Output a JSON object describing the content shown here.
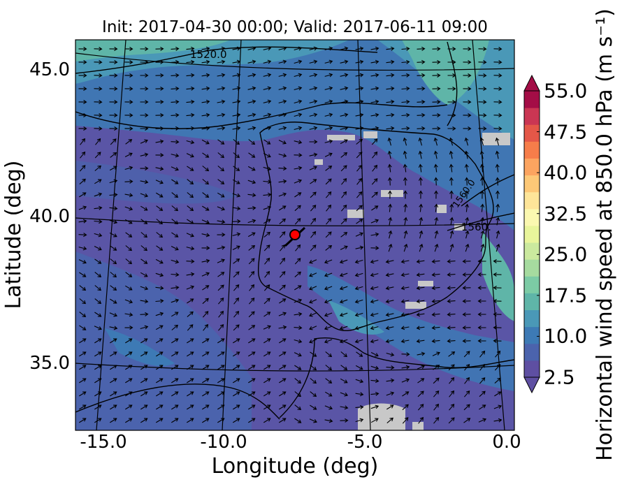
{
  "title": "Init: 2017-04-30 00:00; Valid: 2017-06-11 09:00",
  "xlabel": "Longitude (deg)",
  "ylabel": "Latitude (deg)",
  "colorbar": {
    "label": "Horizontal wind speed at 850.0 hPa (m s⁻¹)",
    "ticks": [
      "2.5",
      "10.0",
      "17.5",
      "25.0",
      "32.5",
      "40.0",
      "47.5",
      "55.0"
    ],
    "colors": [
      "#5e4fa2",
      "#4b63ad",
      "#3d7ab5",
      "#4a98b7",
      "#5fb5a8",
      "#7ccba5",
      "#a6db9f",
      "#cbe99e",
      "#e9f59b",
      "#fbf8b0",
      "#fee599",
      "#fdc877",
      "#fca460",
      "#f67d4a",
      "#e45748",
      "#ca3653",
      "#a40d46"
    ],
    "min": 2.5,
    "max": 55.0,
    "step": 2.5
  },
  "axes": {
    "x_ticks": [
      "-15.0",
      "-10.0",
      "-5.0",
      "0.0"
    ],
    "y_ticks": [
      "45.0",
      "40.0",
      "35.0"
    ],
    "xlim": [
      -16,
      0
    ],
    "ylim": [
      33,
      46
    ]
  },
  "contour_labels": [
    "1520.0",
    "1560.",
    "1560.0"
  ],
  "marker": {
    "lon": -7.6,
    "lat": 39.3,
    "color": "#ff0000"
  },
  "colors": {
    "background_wind": "#4f58a8",
    "land_fill": "#c8c8c8"
  }
}
